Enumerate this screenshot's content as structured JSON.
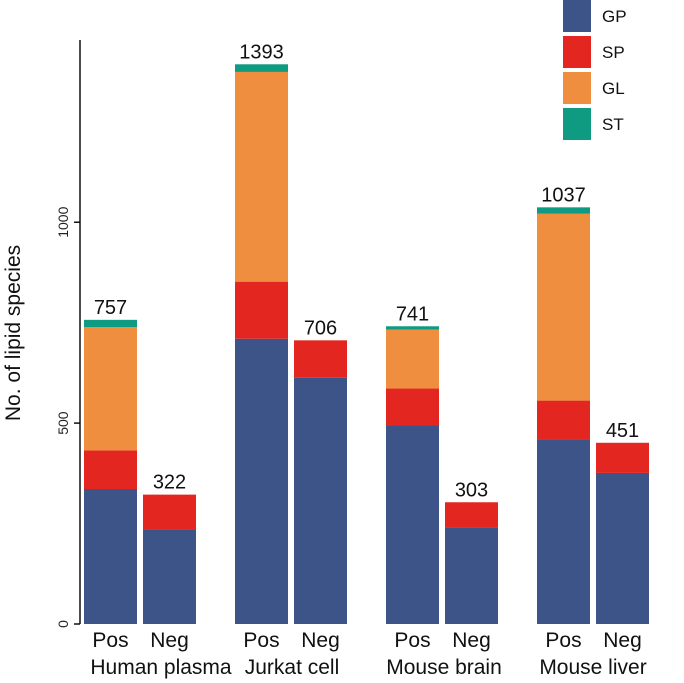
{
  "chart_data": {
    "type": "bar",
    "stacked": true,
    "ylabel": "No. of lipid species",
    "ylim": [
      0,
      1500
    ],
    "yticks": [
      0,
      500,
      1000
    ],
    "grid": false,
    "legend_position": "top-right",
    "groups": [
      "Human plasma",
      "Jurkat cell",
      "Mouse brain",
      "Mouse liver"
    ],
    "categories": [
      "Pos",
      "Neg",
      "Pos",
      "Neg",
      "Pos",
      "Neg",
      "Pos",
      "Neg"
    ],
    "series": [
      {
        "name": "GP",
        "color": "#3d5489",
        "values": [
          336,
          235,
          710,
          613,
          494,
          241,
          458,
          376
        ]
      },
      {
        "name": "SP",
        "color": "#e3261f",
        "values": [
          96,
          87,
          142,
          93,
          92,
          62,
          98,
          75
        ]
      },
      {
        "name": "GL",
        "color": "#ef8e3f",
        "values": [
          307,
          0,
          522,
          0,
          147,
          0,
          465,
          0
        ]
      },
      {
        "name": "ST",
        "color": "#0f9a82",
        "values": [
          18,
          0,
          19,
          0,
          8,
          0,
          16,
          0
        ]
      }
    ],
    "totals": [
      757,
      322,
      1393,
      706,
      741,
      303,
      1037,
      451
    ]
  }
}
